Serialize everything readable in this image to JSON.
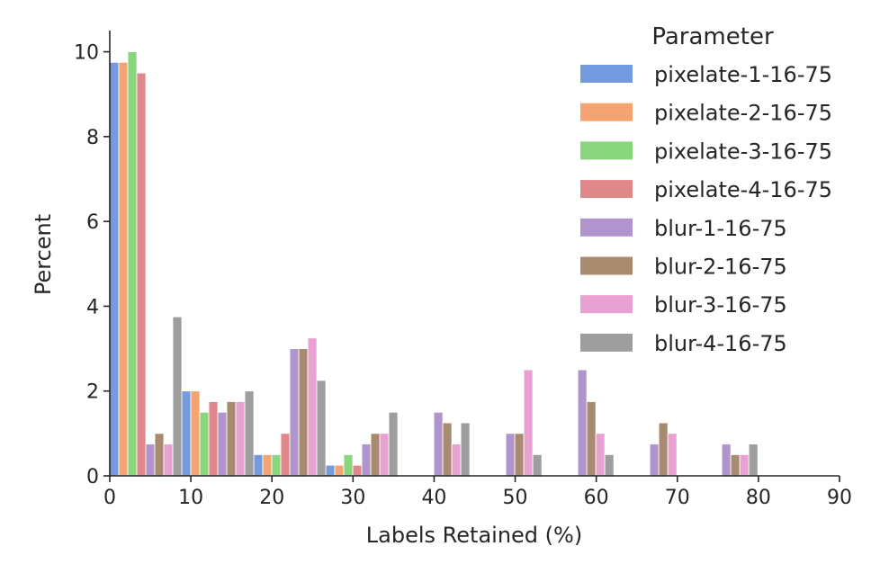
{
  "chart_data": {
    "type": "bar",
    "title": "",
    "xlabel": "Labels Retained (%)",
    "ylabel": "Percent",
    "xlim": [
      0,
      90
    ],
    "ylim": [
      0,
      10.5
    ],
    "xticks": [
      0,
      10,
      20,
      30,
      40,
      50,
      60,
      70,
      80,
      90
    ],
    "yticks": [
      0,
      2,
      4,
      6,
      8,
      10
    ],
    "bin_width": 8.88,
    "bin_starts": [
      0,
      8.88,
      17.76,
      26.64,
      35.52,
      44.4,
      53.28,
      62.16,
      71.04,
      79.92
    ],
    "grid": false,
    "legend": {
      "title": "Parameter",
      "position": "top-right"
    },
    "series": [
      {
        "name": "pixelate-1-16-75",
        "color": "#7399df",
        "values": [
          9.75,
          2.0,
          0.5,
          0.25,
          0,
          0,
          0,
          0,
          0,
          0
        ]
      },
      {
        "name": "pixelate-2-16-75",
        "color": "#f4a473",
        "values": [
          9.75,
          2.0,
          0.5,
          0.25,
          0,
          0,
          0,
          0,
          0,
          0
        ]
      },
      {
        "name": "pixelate-3-16-75",
        "color": "#89d67f",
        "values": [
          10.0,
          1.5,
          0.5,
          0.5,
          0,
          0,
          0,
          0,
          0,
          0
        ]
      },
      {
        "name": "pixelate-4-16-75",
        "color": "#e0878a",
        "values": [
          9.5,
          1.75,
          1.0,
          0.25,
          0,
          0,
          0,
          0,
          0,
          0
        ]
      },
      {
        "name": "blur-1-16-75",
        "color": "#b094cc",
        "values": [
          0.75,
          1.5,
          3.0,
          0.75,
          1.5,
          1.0,
          2.5,
          0.75,
          0.75,
          0
        ]
      },
      {
        "name": "blur-2-16-75",
        "color": "#a88b6e",
        "values": [
          1.0,
          1.75,
          3.0,
          1.0,
          1.25,
          1.0,
          1.75,
          1.25,
          0.5,
          0
        ]
      },
      {
        "name": "blur-3-16-75",
        "color": "#e9a0d2",
        "values": [
          0.75,
          1.75,
          3.25,
          1.0,
          0.75,
          2.5,
          1.0,
          1.0,
          0.5,
          0
        ]
      },
      {
        "name": "blur-4-16-75",
        "color": "#9e9e9e",
        "values": [
          3.75,
          2.0,
          2.25,
          1.5,
          1.25,
          0.5,
          0.5,
          0,
          0.75,
          0
        ]
      }
    ]
  }
}
